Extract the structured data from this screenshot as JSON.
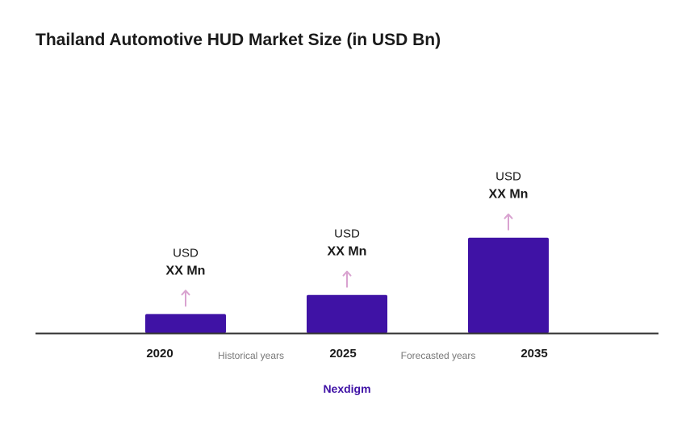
{
  "title": "Thailand Automotive HUD Market Size (in USD Bn)",
  "brand": "Nexdigm",
  "colors": {
    "bar": "#3f12a5",
    "arrow": "#d9a3d0",
    "axis": "#333333",
    "text": "#1a1a1a",
    "period_text": "#777777",
    "brand": "#3f12a5"
  },
  "chart_data": {
    "type": "bar",
    "categories": [
      "2020",
      "2025",
      "2035"
    ],
    "values": [
      1,
      2,
      5
    ],
    "value_labels": [
      {
        "currency": "USD",
        "amount": "XX Mn"
      },
      {
        "currency": "USD",
        "amount": "XX Mn"
      },
      {
        "currency": "USD",
        "amount": "XX Mn"
      }
    ],
    "period_labels": [
      "Historical years",
      "Forecasted years"
    ],
    "ylim": [
      0,
      5.2
    ],
    "grid": false,
    "legend": "none"
  }
}
